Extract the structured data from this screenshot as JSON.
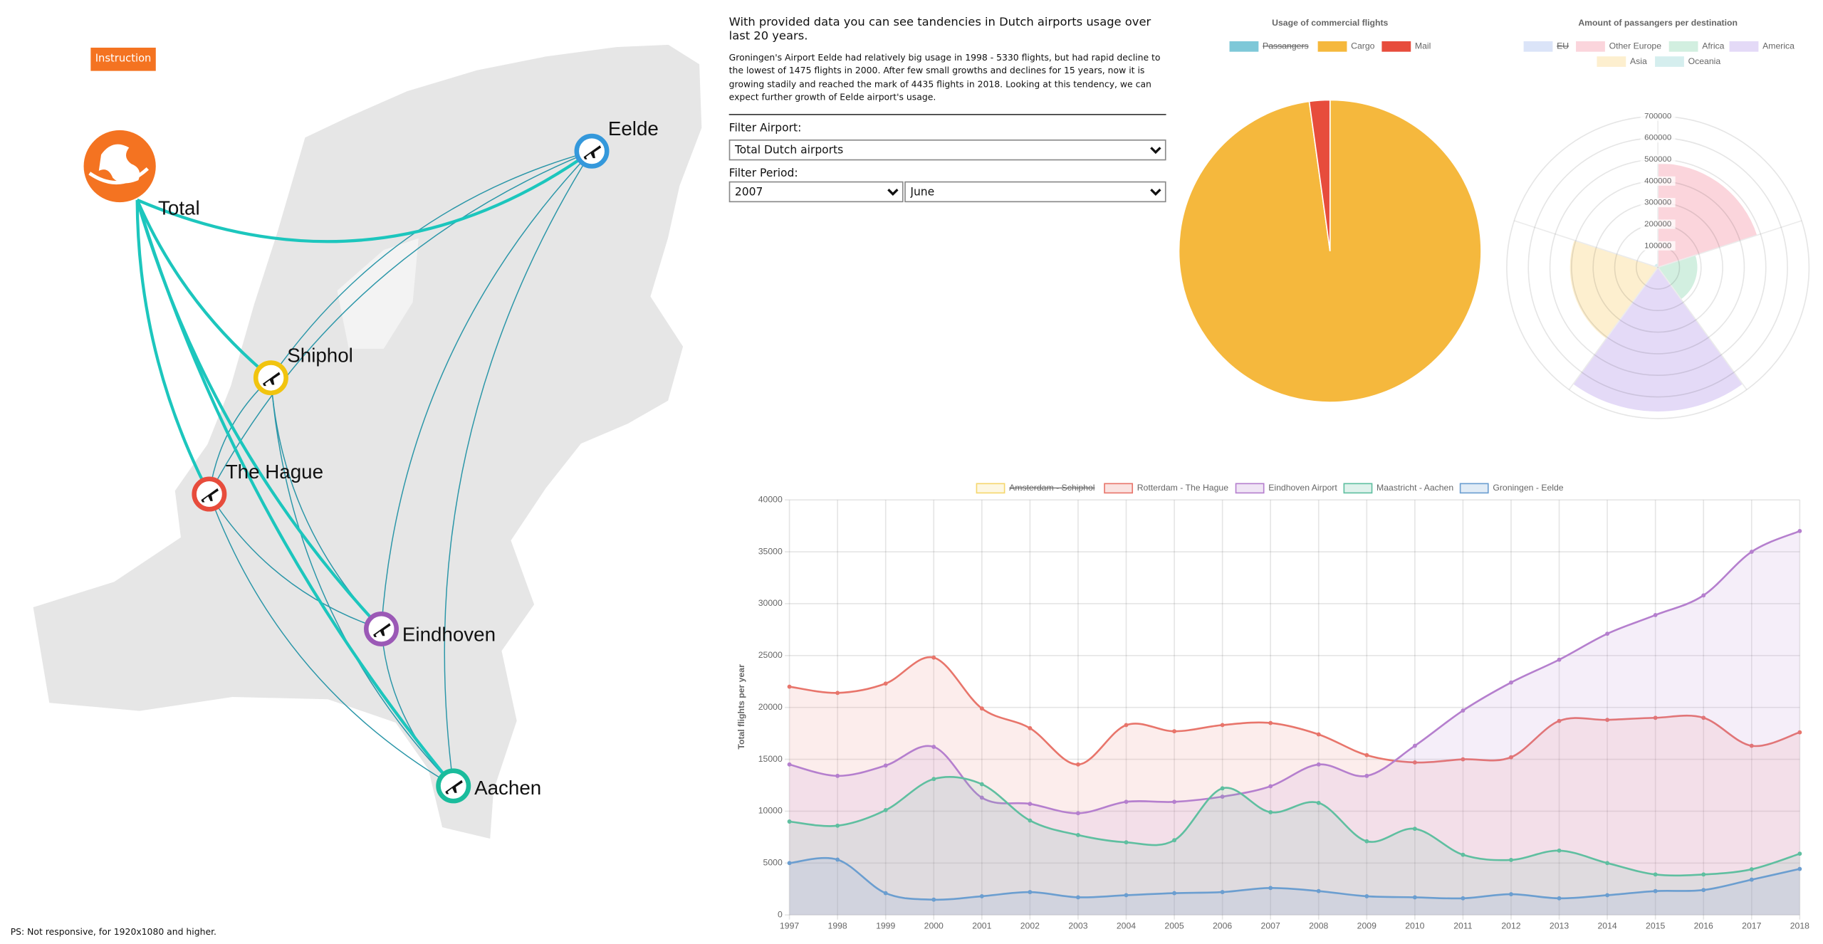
{
  "button": "Instruction",
  "map": {
    "nodes": [
      {
        "label": "Total",
        "color": "#f47321"
      },
      {
        "label": "Eelde",
        "color": "#3498db"
      },
      {
        "label": "Shiphol",
        "color": "#f1c40f"
      },
      {
        "label": "The Hague",
        "color": "#e74c3c"
      },
      {
        "label": "Eindhoven",
        "color": "#9b59b6"
      },
      {
        "label": "Aachen",
        "color": "#1abc9c"
      }
    ]
  },
  "info": {
    "intro": "With provided data you can see tandencies in Dutch airports usage over last 20 years.",
    "text": "Groningen's Airport Eelde had relatively big usage in 1998 - 5330 flights, but had rapid decline to the lowest of 1475 flights in 2000. After few small growths and declines for 15 years, now it is growing stadily and reached the mark of 4435 flights in 2018. Looking at this tendency, we can expect further growth of Eelde airport's usage."
  },
  "filters": {
    "airport_label": "Filter Airport:",
    "airport": "Total Dutch airports",
    "period_label": "Filter Period:",
    "year": "2007",
    "month": "June"
  },
  "footer": "PS: Not responsive, for 1920x1080 and higher.",
  "chart_data": [
    {
      "type": "pie",
      "title": "Usage of commercial flights",
      "categories": [
        "Passangers",
        "Cargo",
        "Mail"
      ],
      "values": [
        null,
        97.8,
        2.2
      ],
      "colors": [
        "#7ec8d8",
        "#f5b83d",
        "#e74c3c"
      ],
      "hidden": [
        true,
        false,
        false
      ]
    },
    {
      "type": "polarArea",
      "title": "Amount of passangers per destination",
      "categories": [
        "EU",
        "Other Europe",
        "Africa",
        "America",
        "Asia",
        "Oceania"
      ],
      "values": [
        null,
        485000,
        185000,
        670000,
        410000,
        20000
      ],
      "colors": [
        "#dbe4f8",
        "#fbd5dc",
        "#d2efe0",
        "#e4daf7",
        "#fdefcf",
        "#d5eeee"
      ],
      "hidden": [
        true,
        false,
        false,
        false,
        false,
        false
      ],
      "rlim": [
        0,
        700000
      ],
      "rticks": [
        100000,
        200000,
        300000,
        400000,
        500000,
        600000,
        700000
      ]
    },
    {
      "type": "line",
      "ylabel": "Total flights per year",
      "categories": [
        "1997",
        "1998",
        "1999",
        "2000",
        "2001",
        "2002",
        "2003",
        "2004",
        "2005",
        "2006",
        "2007",
        "2008",
        "2009",
        "2010",
        "2011",
        "2012",
        "2013",
        "2014",
        "2015",
        "2016",
        "2017",
        "2018"
      ],
      "ylim": [
        0,
        40000
      ],
      "yticks": [
        0,
        5000,
        10000,
        15000,
        20000,
        25000,
        30000,
        35000,
        40000
      ],
      "grid": true,
      "series": [
        {
          "name": "Amsterdam - Schiphol",
          "color": "#f5d76e",
          "hidden": true,
          "values": [
            null,
            null,
            null,
            null,
            null,
            null,
            null,
            null,
            null,
            null,
            null,
            null,
            null,
            null,
            null,
            null,
            null,
            null,
            null,
            null,
            null,
            null
          ]
        },
        {
          "name": "Rotterdam - The Hague",
          "color": "#e8756b",
          "values": [
            22000,
            21400,
            22300,
            24800,
            19900,
            18000,
            14500,
            18300,
            17700,
            18300,
            18500,
            17400,
            15400,
            14700,
            15000,
            15200,
            18700,
            18800,
            19000,
            19000,
            16300,
            17600
          ]
        },
        {
          "name": "Eindhoven Airport",
          "color": "#b57fce",
          "values": [
            14500,
            13400,
            14400,
            16200,
            11300,
            10700,
            9800,
            10900,
            10900,
            11400,
            12400,
            14500,
            13400,
            16300,
            19700,
            22400,
            24600,
            27100,
            28900,
            30800,
            35000,
            37000
          ]
        },
        {
          "name": "Maastricht - Aachen",
          "color": "#5fbfa0",
          "values": [
            9000,
            8600,
            10100,
            13100,
            12600,
            9100,
            7700,
            7000,
            7200,
            12200,
            9900,
            10800,
            7100,
            8300,
            5800,
            5300,
            6200,
            5000,
            3900,
            3900,
            4400,
            5900
          ]
        },
        {
          "name": "Groningen - Eelde",
          "color": "#6b9ed0",
          "values": [
            5000,
            5330,
            2100,
            1475,
            1800,
            2200,
            1700,
            1900,
            2100,
            2200,
            2600,
            2300,
            1800,
            1700,
            1600,
            2000,
            1600,
            1900,
            2300,
            2400,
            3400,
            4435
          ]
        }
      ]
    }
  ]
}
